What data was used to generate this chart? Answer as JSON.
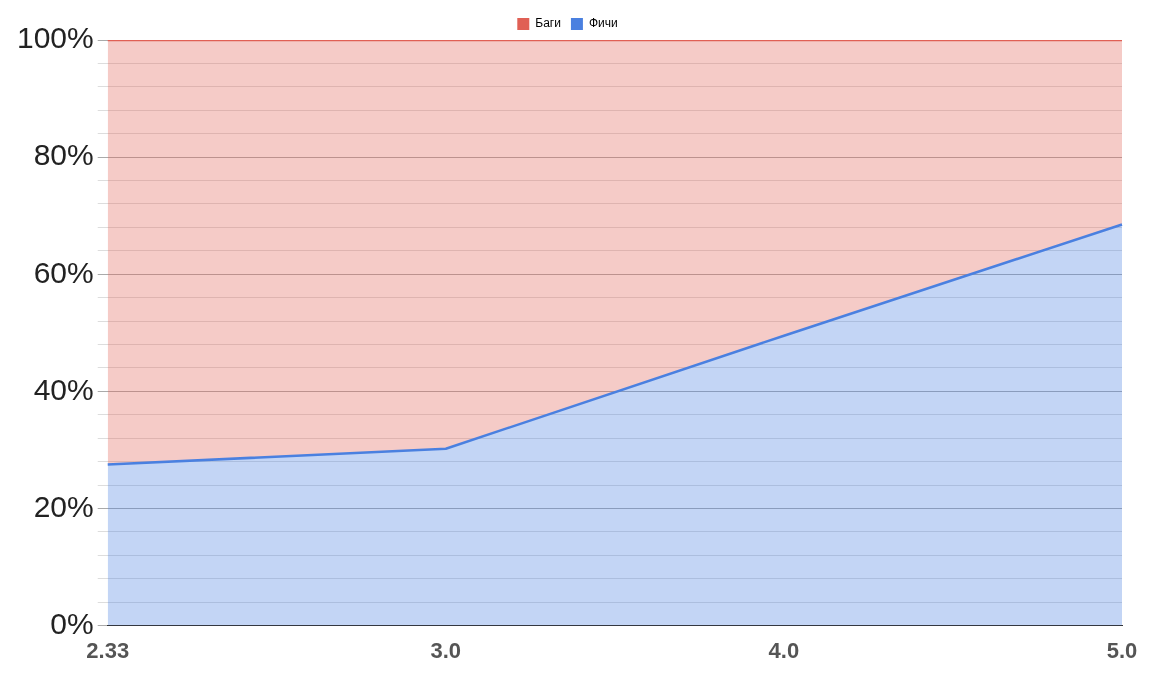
{
  "chart_data": {
    "type": "area",
    "stacked": true,
    "categories": [
      "2.33",
      "3.0",
      "4.0",
      "5.0"
    ],
    "series": [
      {
        "name": "Фичи",
        "color": "#4a80e0",
        "values": [
          27.5,
          30.2,
          49.5,
          68.5
        ]
      },
      {
        "name": "Баги",
        "color": "#e06055",
        "values": [
          72.5,
          69.8,
          50.5,
          31.5
        ]
      }
    ],
    "ylim": [
      0,
      100
    ],
    "yticks": [
      {
        "value": 0,
        "label": "0%"
      },
      {
        "value": 4,
        "label": null
      },
      {
        "value": 8,
        "label": null
      },
      {
        "value": 12,
        "label": null
      },
      {
        "value": 16,
        "label": null
      },
      {
        "value": 20,
        "label": "20%"
      },
      {
        "value": 24,
        "label": null
      },
      {
        "value": 28,
        "label": null
      },
      {
        "value": 32,
        "label": null
      },
      {
        "value": 36,
        "label": null
      },
      {
        "value": 40,
        "label": "40%"
      },
      {
        "value": 44,
        "label": null
      },
      {
        "value": 48,
        "label": null
      },
      {
        "value": 52,
        "label": null
      },
      {
        "value": 56,
        "label": null
      },
      {
        "value": 60,
        "label": "60%"
      },
      {
        "value": 64,
        "label": null
      },
      {
        "value": 68,
        "label": null
      },
      {
        "value": 72,
        "label": null
      },
      {
        "value": 76,
        "label": null
      },
      {
        "value": 80,
        "label": "80%"
      },
      {
        "value": 84,
        "label": null
      },
      {
        "value": 88,
        "label": null
      },
      {
        "value": 92,
        "label": null
      },
      {
        "value": 96,
        "label": null
      },
      {
        "value": 100,
        "label": "100%"
      }
    ],
    "grid": "y",
    "legend": "top",
    "marker": "none",
    "line_style": "solid"
  }
}
